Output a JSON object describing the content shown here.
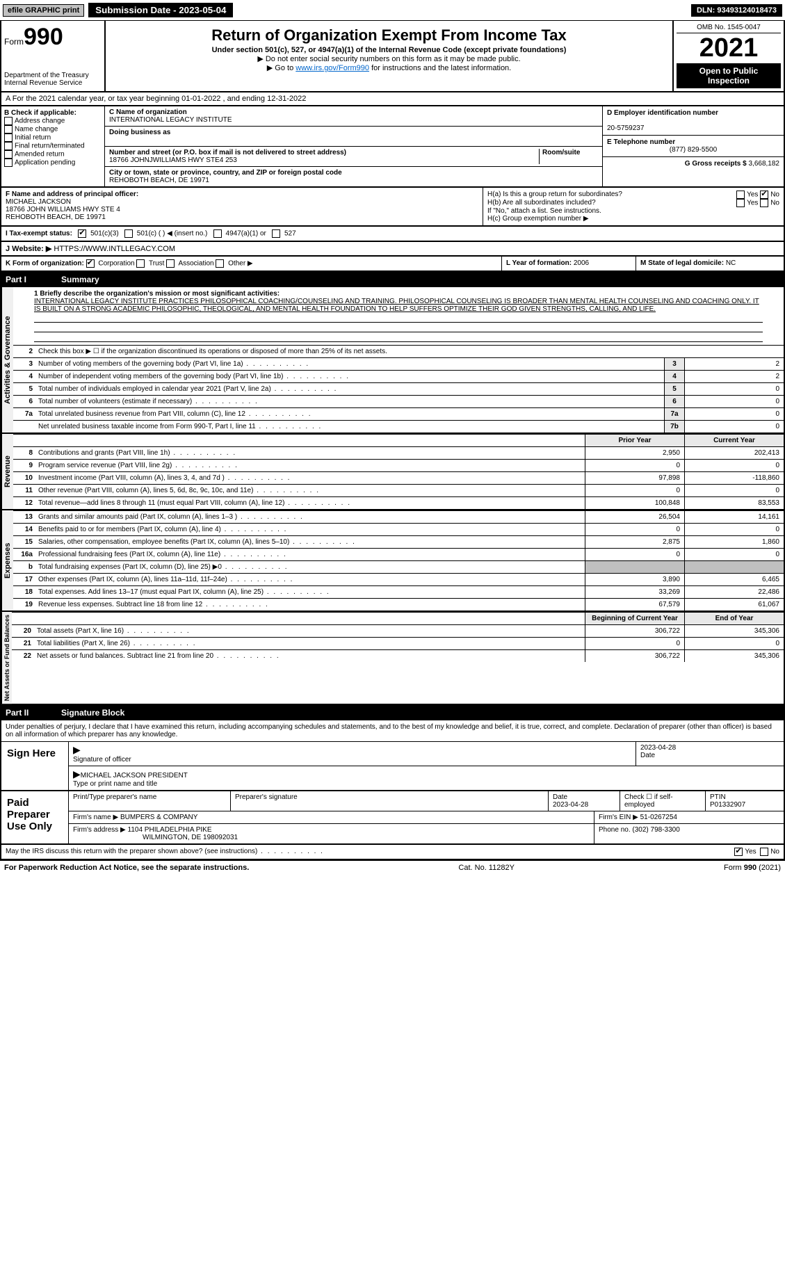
{
  "topbar": {
    "efile": "efile GRAPHIC print",
    "submission": "Submission Date - 2023-05-04",
    "dln": "DLN: 93493124018473"
  },
  "header": {
    "form_label": "Form",
    "form_number": "990",
    "dept": "Department of the Treasury",
    "irs": "Internal Revenue Service",
    "title": "Return of Organization Exempt From Income Tax",
    "subtitle": "Under section 501(c), 527, or 4947(a)(1) of the Internal Revenue Code (except private foundations)",
    "note1": "▶ Do not enter social security numbers on this form as it may be made public.",
    "note2": "▶ Go to ",
    "link": "www.irs.gov/Form990",
    "note3": " for instructions and the latest information.",
    "omb": "OMB No. 1545-0047",
    "year": "2021",
    "open": "Open to Public Inspection"
  },
  "section_a": {
    "text": "A For the 2021 calendar year, or tax year beginning 01-01-2022    , and ending 12-31-2022"
  },
  "section_b": {
    "title": "B Check if applicable:",
    "items": [
      "Address change",
      "Name change",
      "Initial return",
      "Final return/terminated",
      "Amended return",
      "Application pending"
    ]
  },
  "section_c": {
    "name_lbl": "C Name of organization",
    "name": "INTERNATIONAL LEGACY INSTITUTE",
    "dba_lbl": "Doing business as",
    "dba": "",
    "street_lbl": "Number and street (or P.O. box if mail is not delivered to street address)",
    "room_lbl": "Room/suite",
    "street": "18766 JOHNJWILLIAMS HWY STE4 253",
    "city_lbl": "City or town, state or province, country, and ZIP or foreign postal code",
    "city": "REHOBOTH BEACH, DE  19971"
  },
  "section_d": {
    "lbl": "D Employer identification number",
    "val": "20-5759237"
  },
  "section_e": {
    "lbl": "E Telephone number",
    "val": "(877) 829-5500"
  },
  "section_g": {
    "lbl": "G Gross receipts $",
    "val": "3,668,182"
  },
  "section_f": {
    "lbl": "F  Name and address of principal officer:",
    "name": "MICHAEL JACKSON",
    "addr1": "18766 JOHN WILLIAMS HWY STE 4",
    "addr2": "REHOBOTH BEACH, DE  19971"
  },
  "section_h": {
    "a_lbl": "H(a)  Is this a group return for subordinates?",
    "b_lbl": "H(b)  Are all subordinates included?",
    "b_note": "If \"No,\" attach a list. See instructions.",
    "c_lbl": "H(c)  Group exemption number ▶",
    "yes": "Yes",
    "no": "No"
  },
  "section_i": {
    "lbl": "I  Tax-exempt status:",
    "opt1": "501(c)(3)",
    "opt2": "501(c) (  ) ◀ (insert no.)",
    "opt3": "4947(a)(1) or",
    "opt4": "527"
  },
  "section_j": {
    "lbl": "J  Website: ▶",
    "val": "HTTPS://WWW.INTLLEGACY.COM"
  },
  "section_k": {
    "lbl": "K Form of organization:",
    "opts": [
      "Corporation",
      "Trust",
      "Association",
      "Other ▶"
    ]
  },
  "section_l": {
    "lbl": "L Year of formation:",
    "val": "2006"
  },
  "section_m": {
    "lbl": "M State of legal domicile:",
    "val": "NC"
  },
  "part1": {
    "label": "Part I",
    "title": "Summary"
  },
  "mission": {
    "lbl": "1 Briefly describe the organization's mission or most significant activities:",
    "text": "INTERNATIONAL LEGACY INSTITUTE PRACTICES PHILOSOPHICAL COACHING/COUNSELING AND TRAINING. PHILOSOPHICAL COUNSELING IS BROADER THAN MENTAL HEALTH COUNSELING AND COACHING ONLY. IT IS BUILT ON A STRONG ACADEMIC PHILOSOPHIC, THEOLOGICAL, AND MENTAL HEALTH FOUNDATION TO HELP SUFFERS OPTIMIZE THEIR GOD GIVEN STRENGTHS, CALLING, AND LIFE."
  },
  "activities": {
    "vert": "Activities & Governance",
    "line2": "Check this box ▶ ☐  if the organization discontinued its operations or disposed of more than 25% of its net assets.",
    "rows": [
      {
        "n": "3",
        "d": "Number of voting members of the governing body (Part VI, line 1a)",
        "box": "3",
        "v": "2"
      },
      {
        "n": "4",
        "d": "Number of independent voting members of the governing body (Part VI, line 1b)",
        "box": "4",
        "v": "2"
      },
      {
        "n": "5",
        "d": "Total number of individuals employed in calendar year 2021 (Part V, line 2a)",
        "box": "5",
        "v": "0"
      },
      {
        "n": "6",
        "d": "Total number of volunteers (estimate if necessary)",
        "box": "6",
        "v": "0"
      },
      {
        "n": "7a",
        "d": "Total unrelated business revenue from Part VIII, column (C), line 12",
        "box": "7a",
        "v": "0"
      },
      {
        "n": "",
        "d": "Net unrelated business taxable income from Form 990-T, Part I, line 11",
        "box": "7b",
        "v": "0"
      }
    ]
  },
  "revenue": {
    "vert": "Revenue",
    "hdr_prior": "Prior Year",
    "hdr_current": "Current Year",
    "rows": [
      {
        "n": "8",
        "d": "Contributions and grants (Part VIII, line 1h)",
        "p": "2,950",
        "c": "202,413"
      },
      {
        "n": "9",
        "d": "Program service revenue (Part VIII, line 2g)",
        "p": "0",
        "c": "0"
      },
      {
        "n": "10",
        "d": "Investment income (Part VIII, column (A), lines 3, 4, and 7d )",
        "p": "97,898",
        "c": "-118,860"
      },
      {
        "n": "11",
        "d": "Other revenue (Part VIII, column (A), lines 5, 6d, 8c, 9c, 10c, and 11e)",
        "p": "0",
        "c": "0"
      },
      {
        "n": "12",
        "d": "Total revenue—add lines 8 through 11 (must equal Part VIII, column (A), line 12)",
        "p": "100,848",
        "c": "83,553"
      }
    ]
  },
  "expenses": {
    "vert": "Expenses",
    "rows": [
      {
        "n": "13",
        "d": "Grants and similar amounts paid (Part IX, column (A), lines 1–3 )",
        "p": "26,504",
        "c": "14,161"
      },
      {
        "n": "14",
        "d": "Benefits paid to or for members (Part IX, column (A), line 4)",
        "p": "0",
        "c": "0"
      },
      {
        "n": "15",
        "d": "Salaries, other compensation, employee benefits (Part IX, column (A), lines 5–10)",
        "p": "2,875",
        "c": "1,860"
      },
      {
        "n": "16a",
        "d": "Professional fundraising fees (Part IX, column (A), line 11e)",
        "p": "0",
        "c": "0"
      },
      {
        "n": "b",
        "d": "Total fundraising expenses (Part IX, column (D), line 25) ▶0",
        "p": "",
        "c": ""
      },
      {
        "n": "17",
        "d": "Other expenses (Part IX, column (A), lines 11a–11d, 11f–24e)",
        "p": "3,890",
        "c": "6,465"
      },
      {
        "n": "18",
        "d": "Total expenses. Add lines 13–17 (must equal Part IX, column (A), line 25)",
        "p": "33,269",
        "c": "22,486"
      },
      {
        "n": "19",
        "d": "Revenue less expenses. Subtract line 18 from line 12",
        "p": "67,579",
        "c": "61,067"
      }
    ]
  },
  "netassets": {
    "vert": "Net Assets or Fund Balances",
    "hdr_begin": "Beginning of Current Year",
    "hdr_end": "End of Year",
    "rows": [
      {
        "n": "20",
        "d": "Total assets (Part X, line 16)",
        "p": "306,722",
        "c": "345,306"
      },
      {
        "n": "21",
        "d": "Total liabilities (Part X, line 26)",
        "p": "0",
        "c": "0"
      },
      {
        "n": "22",
        "d": "Net assets or fund balances. Subtract line 21 from line 20",
        "p": "306,722",
        "c": "345,306"
      }
    ]
  },
  "part2": {
    "label": "Part II",
    "title": "Signature Block"
  },
  "perjury": "Under penalties of perjury, I declare that I have examined this return, including accompanying schedules and statements, and to the best of my knowledge and belief, it is true, correct, and complete. Declaration of preparer (other than officer) is based on all information of which preparer has any knowledge.",
  "sign": {
    "label": "Sign Here",
    "sig_lbl": "Signature of officer",
    "date": "2023-04-28",
    "date_lbl": "Date",
    "name": "MICHAEL JACKSON PRESIDENT",
    "name_lbl": "Type or print name and title"
  },
  "preparer": {
    "label": "Paid Preparer Use Only",
    "cols": [
      "Print/Type preparer's name",
      "Preparer's signature",
      "Date",
      "Check ☐ if self-employed",
      "PTIN"
    ],
    "date": "2023-04-28",
    "ptin": "P01332907",
    "firm_lbl": "Firm's name    ▶",
    "firm": "BUMPERS & COMPANY",
    "ein_lbl": "Firm's EIN ▶",
    "ein": "51-0267254",
    "addr_lbl": "Firm's address ▶",
    "addr": "1104 PHILADELPHIA PIKE",
    "addr2": "WILMINGTON, DE  198092031",
    "phone_lbl": "Phone no.",
    "phone": "(302) 798-3300"
  },
  "discuss": {
    "text": "May the IRS discuss this return with the preparer shown above? (see instructions)",
    "yes": "Yes",
    "no": "No"
  },
  "footer": {
    "left": "For Paperwork Reduction Act Notice, see the separate instructions.",
    "center": "Cat. No. 11282Y",
    "right": "Form 990 (2021)"
  }
}
